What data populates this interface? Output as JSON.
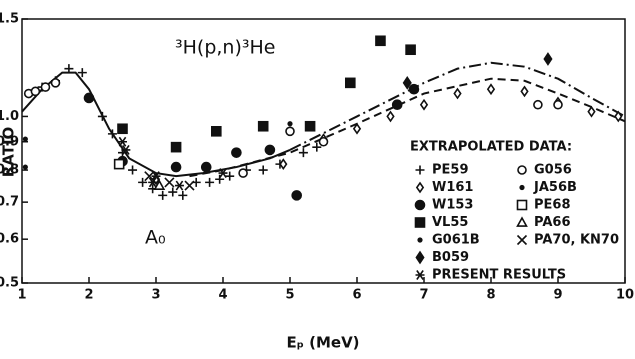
{
  "chart_data": {
    "type": "scatter",
    "annotations": [
      "³H(p,n)³He",
      "A₀"
    ],
    "legend_title": "EXTRAPOLATED DATA:",
    "xlabel": "Eₚ (MeV)",
    "ylabel": "RATIO",
    "xlim": [
      1,
      10
    ],
    "xticks": [
      1,
      2,
      3,
      4,
      5,
      6,
      7,
      8,
      9,
      10
    ],
    "ylim": [
      0.5,
      1.5
    ],
    "log_y": true,
    "yticks": [
      0.5,
      0.6,
      0.7,
      0.8,
      0.9,
      {
        "value": 1,
        "label": "1.0"
      },
      1.5
    ],
    "color": "#111111",
    "series": [
      {
        "name": "PE59",
        "marker": "plus",
        "x": [
          1.3,
          1.5,
          1.7,
          1.9,
          2.2,
          2.35,
          2.5,
          2.65,
          2.8,
          2.95,
          3.1,
          3.25,
          3.4,
          3.6,
          3.8,
          3.95,
          4.1,
          4.35,
          4.6,
          4.85,
          5.2,
          5.4
        ],
        "values": [
          1.13,
          1.16,
          1.22,
          1.2,
          1.0,
          0.93,
          0.86,
          0.8,
          0.76,
          0.74,
          0.72,
          0.73,
          0.72,
          0.76,
          0.76,
          0.77,
          0.78,
          0.8,
          0.8,
          0.82,
          0.86,
          0.88
        ]
      },
      {
        "name": "W161",
        "marker": "diamond",
        "x": [
          3.0,
          4.9,
          5.5,
          6.0,
          6.5,
          7.0,
          7.5,
          8.0,
          8.5,
          9.0,
          9.5,
          9.9
        ],
        "values": [
          0.77,
          0.82,
          0.91,
          0.95,
          1.0,
          1.05,
          1.1,
          1.12,
          1.11,
          1.06,
          1.02,
          1.0
        ]
      },
      {
        "name": "W153",
        "marker": "disc",
        "x": [
          2.0,
          2.5,
          3.3,
          3.75,
          4.2,
          4.7,
          5.1,
          6.6,
          6.85
        ],
        "values": [
          1.08,
          0.83,
          0.81,
          0.81,
          0.86,
          0.87,
          0.72,
          1.05,
          1.12
        ]
      },
      {
        "name": "VL55",
        "marker": "filled-square",
        "x": [
          2.5,
          3.3,
          3.9,
          4.6,
          5.3,
          5.9,
          6.35,
          6.8
        ],
        "values": [
          0.95,
          0.88,
          0.94,
          0.96,
          0.96,
          1.15,
          1.37,
          1.32
        ]
      },
      {
        "name": "G061B",
        "marker": "dot",
        "x": [
          1.05,
          1.05
        ],
        "values": [
          0.91,
          0.81
        ]
      },
      {
        "name": "B059",
        "marker": "filled-diamond",
        "x": [
          6.75,
          8.85
        ],
        "values": [
          1.15,
          1.27
        ]
      },
      {
        "name": "G056",
        "marker": "circle",
        "x": [
          1.1,
          1.2,
          1.35,
          1.5,
          4.3,
          5.0,
          5.5,
          8.7,
          9.0
        ],
        "values": [
          1.1,
          1.11,
          1.13,
          1.15,
          0.79,
          0.94,
          0.9,
          1.05,
          1.05
        ]
      },
      {
        "name": "JA56B",
        "marker": "dot",
        "x": [
          5.0
        ],
        "values": [
          0.97
        ]
      },
      {
        "name": "PE68",
        "marker": "square",
        "x": [
          2.45
        ],
        "values": [
          0.82
        ]
      },
      {
        "name": "PA66",
        "marker": "triangle",
        "x": [
          3.05
        ],
        "values": [
          0.75
        ]
      },
      {
        "name": "PA70, KN70",
        "marker": "cross",
        "x": [
          2.9,
          3.2,
          3.5
        ],
        "values": [
          0.78,
          0.76,
          0.75
        ]
      },
      {
        "name": "PRESENT RESULTS",
        "marker": "asterisk",
        "x": [
          2.5,
          2.55,
          2.95,
          3.0,
          3.35,
          4.0
        ],
        "values": [
          0.9,
          0.87,
          0.76,
          0.78,
          0.75,
          0.79
        ]
      }
    ],
    "curves": [
      {
        "style": "solid",
        "x": [
          1,
          1.3,
          1.6,
          1.8,
          2.0,
          2.3,
          2.6,
          3.0,
          3.3,
          3.7,
          4.2,
          4.7,
          5.0
        ],
        "values": [
          1.02,
          1.12,
          1.2,
          1.2,
          1.12,
          0.95,
          0.84,
          0.79,
          0.78,
          0.79,
          0.81,
          0.84,
          0.87
        ]
      },
      {
        "style": "dashdot",
        "x": [
          5,
          6,
          7,
          7.5,
          8,
          8.5,
          9,
          9.5,
          10
        ],
        "values": [
          0.87,
          1.0,
          1.15,
          1.22,
          1.25,
          1.23,
          1.17,
          1.08,
          1.0
        ]
      },
      {
        "style": "dashed",
        "x": [
          3.5,
          4,
          5,
          6,
          7,
          8,
          8.5,
          9,
          9.5,
          10
        ],
        "values": [
          0.78,
          0.8,
          0.86,
          0.97,
          1.1,
          1.17,
          1.16,
          1.1,
          1.04,
          0.98
        ]
      }
    ]
  }
}
